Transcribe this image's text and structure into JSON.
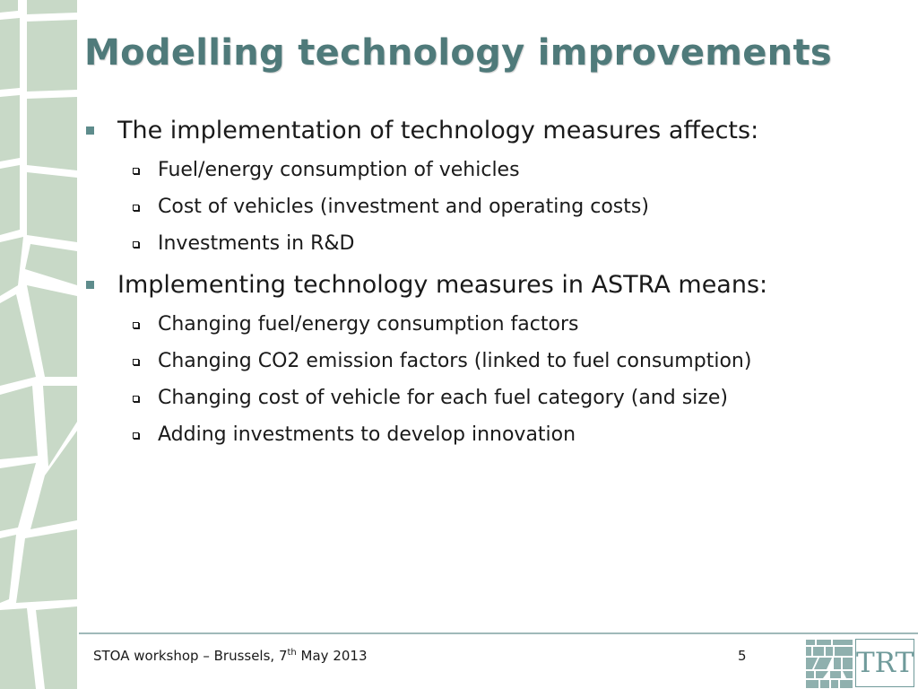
{
  "slide": {
    "title": "Modelling technology improvements",
    "bullets": [
      {
        "text": "The implementation of technology measures affects:",
        "sub": [
          "Fuel/energy consumption of vehicles",
          "Cost of vehicles (investment and operating costs)",
          "Investments in R&D"
        ]
      },
      {
        "text": "Implementing technology measures in ASTRA means:",
        "sub": [
          "Changing fuel/energy consumption factors",
          "Changing CO2 emission factors (linked to fuel consumption)",
          "Changing cost of vehicle for each fuel category (and size)",
          "Adding investments to develop innovation"
        ]
      }
    ]
  },
  "footer": {
    "event_prefix": "STOA workshop – Brussels, 7",
    "event_sup": "th",
    "event_suffix": " May 2013",
    "page_number": "5"
  },
  "logo": {
    "text": "TRT"
  },
  "colors": {
    "accent": "#4f7a7a",
    "sidebar_tile": "#c8d9c7",
    "bullet": "#5e8c8c"
  }
}
